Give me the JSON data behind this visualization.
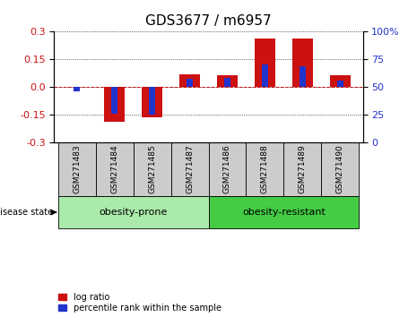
{
  "title": "GDS3677 / m6957",
  "samples": [
    "GSM271483",
    "GSM271484",
    "GSM271485",
    "GSM271487",
    "GSM271486",
    "GSM271488",
    "GSM271489",
    "GSM271490"
  ],
  "log_ratio": [
    0.0,
    -0.19,
    -0.165,
    0.07,
    0.065,
    0.265,
    0.265,
    0.065
  ],
  "percentile_rank": [
    46,
    26,
    25,
    57,
    58,
    70,
    69,
    56
  ],
  "groups": [
    {
      "label": "obesity-prone",
      "indices": [
        0,
        1,
        2,
        3
      ],
      "color": "#aaeaaa"
    },
    {
      "label": "obesity-resistant",
      "indices": [
        4,
        5,
        6,
        7
      ],
      "color": "#44cc44"
    }
  ],
  "ylim": [
    -0.3,
    0.3
  ],
  "y2lim": [
    0,
    100
  ],
  "yticks": [
    -0.3,
    -0.15,
    0.0,
    0.15,
    0.3
  ],
  "y2ticks": [
    0,
    25,
    50,
    75,
    100
  ],
  "red_color": "#cc1111",
  "blue_color": "#2233cc",
  "bg_color": "#ffffff",
  "label_area_color": "#cccccc",
  "font_size": 8,
  "title_font_size": 11
}
